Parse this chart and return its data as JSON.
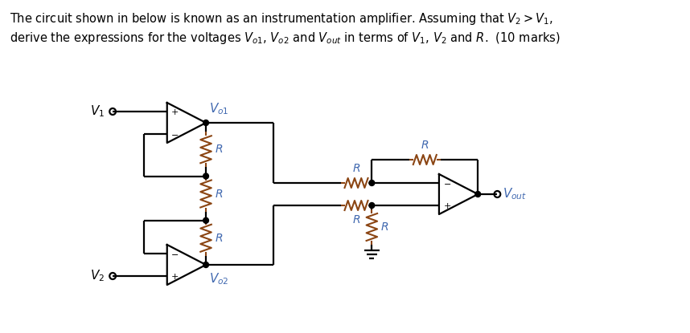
{
  "bg_color": "#ffffff",
  "line_color": "#000000",
  "resistor_color": "#8B4513",
  "label_color": "#4169B0",
  "figsize": [
    8.58,
    4.15
  ],
  "dpi": 100,
  "title_line1": "The circuit shown in below is known as an instrumentation amplifier. Assuming that $V_2 > V_1$,",
  "title_line2": "derive the expressions for the voltages $V_{o1}$, $V_{o2}$ and $V_{out}$ in terms of $V_1$, $V_2$ and $R$.  (10 marks)"
}
